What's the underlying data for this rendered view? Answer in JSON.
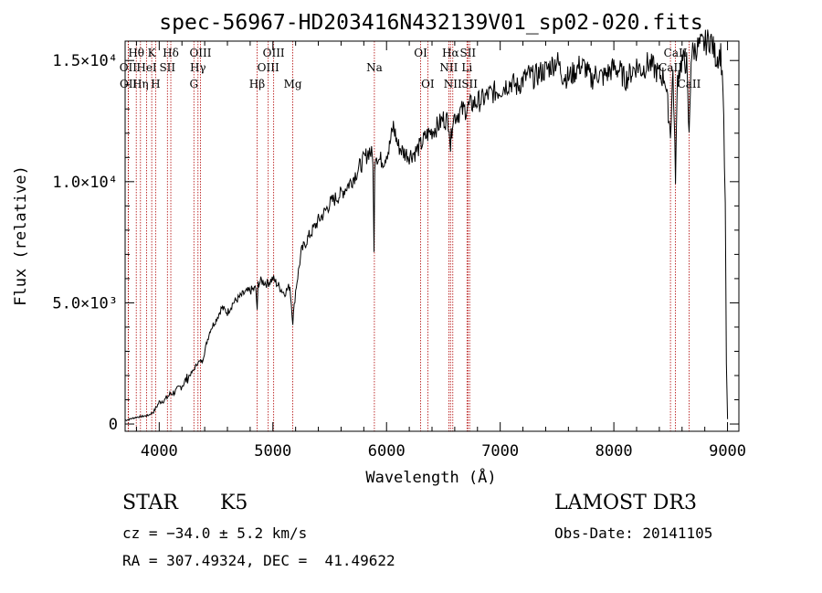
{
  "chart_data": {
    "type": "line",
    "title": "spec-56967-HD203416N432139V01_sp02-020.fits",
    "xlabel": "Wavelength (Å)",
    "ylabel": "Flux (relative)",
    "xlim": [
      3700,
      9100
    ],
    "ylim": [
      -300,
      15800
    ],
    "xticks": [
      {
        "value": 4000,
        "label": "4000"
      },
      {
        "value": 5000,
        "label": "5000"
      },
      {
        "value": 6000,
        "label": "6000"
      },
      {
        "value": 7000,
        "label": "7000"
      },
      {
        "value": 8000,
        "label": "8000"
      },
      {
        "value": 9000,
        "label": "9000"
      }
    ],
    "yticks": [
      {
        "value": 0,
        "label": "0"
      },
      {
        "value": 5000,
        "label": "5.0×10³"
      },
      {
        "value": 10000,
        "label": "1.0×10⁴"
      },
      {
        "value": 15000,
        "label": "1.5×10⁴"
      }
    ],
    "spectrum": {
      "wavelength": [
        3700,
        3800,
        3900,
        3950,
        4000,
        4050,
        4100,
        4150,
        4200,
        4250,
        4300,
        4340,
        4380,
        4420,
        4450,
        4500,
        4550,
        4600,
        4650,
        4700,
        4750,
        4800,
        4850,
        4862,
        4870,
        4900,
        4950,
        5000,
        5050,
        5100,
        5150,
        5175,
        5200,
        5250,
        5300,
        5350,
        5400,
        5450,
        5500,
        5550,
        5600,
        5650,
        5700,
        5750,
        5800,
        5850,
        5880,
        5890,
        5896,
        5905,
        5930,
        5980,
        6000,
        6020,
        6060,
        6100,
        6150,
        6200,
        6250,
        6300,
        6350,
        6400,
        6450,
        6500,
        6550,
        6563,
        6580,
        6600,
        6650,
        6700,
        6750,
        6800,
        6850,
        6900,
        6950,
        7000,
        7050,
        7100,
        7150,
        7200,
        7250,
        7300,
        7350,
        7400,
        7450,
        7500,
        7550,
        7600,
        7650,
        7700,
        7750,
        7800,
        7850,
        7900,
        7950,
        8000,
        8050,
        8100,
        8150,
        8200,
        8250,
        8300,
        8350,
        8400,
        8450,
        8498,
        8520,
        8542,
        8560,
        8600,
        8640,
        8662,
        8680,
        8700,
        8750,
        8800,
        8850,
        8900,
        8940,
        8960,
        8980,
        8990,
        9000
      ],
      "flux": [
        150,
        280,
        350,
        500,
        900,
        1000,
        1250,
        1350,
        1600,
        1900,
        2200,
        2550,
        2600,
        3400,
        3900,
        4300,
        4800,
        4600,
        5000,
        5200,
        5400,
        5500,
        5600,
        4600,
        5800,
        5900,
        5800,
        6000,
        5700,
        5400,
        5700,
        4200,
        5500,
        7100,
        7600,
        8000,
        8400,
        8700,
        9100,
        9300,
        9500,
        9800,
        10100,
        10500,
        10900,
        11300,
        11000,
        7000,
        10800,
        11200,
        10900,
        10900,
        11200,
        11300,
        12300,
        11500,
        11200,
        11100,
        11200,
        11500,
        11900,
        12100,
        12300,
        12600,
        12500,
        11400,
        12600,
        12700,
        12900,
        13000,
        13200,
        13300,
        13400,
        13600,
        13700,
        13800,
        14000,
        14100,
        13900,
        14200,
        14400,
        14300,
        14500,
        14600,
        14800,
        15000,
        14400,
        14300,
        14500,
        14800,
        14700,
        14200,
        14500,
        14300,
        14500,
        14700,
        14600,
        14200,
        14500,
        14800,
        14600,
        14900,
        14700,
        14400,
        14300,
        12000,
        14600,
        10200,
        14300,
        15000,
        14900,
        11800,
        15200,
        15400,
        15600,
        15700,
        15900,
        15100,
        15300,
        14000,
        9000,
        2500,
        200
      ]
    },
    "lines": [
      {
        "name": "Hθ",
        "wl": 3798,
        "row": 1,
        "color": "#b00000"
      },
      {
        "name": "OII",
        "wl": 3727,
        "row": 2,
        "color": "#b00000"
      },
      {
        "name": "OII",
        "wl": 3729,
        "row": 3,
        "color": "#b00000"
      },
      {
        "name": "Hη",
        "wl": 3835,
        "row": 3,
        "color": "#b00000"
      },
      {
        "name": "HeI",
        "wl": 3889,
        "row": 2,
        "color": "#b00000"
      },
      {
        "name": "K",
        "wl": 3934,
        "row": 1,
        "color": "#b00000"
      },
      {
        "name": "H",
        "wl": 3968,
        "row": 3,
        "color": "#b00000"
      },
      {
        "name": "SII",
        "wl": 4072,
        "row": 2,
        "color": "#b00000"
      },
      {
        "name": "Hδ",
        "wl": 4102,
        "row": 1,
        "color": "#b00000"
      },
      {
        "name": "G",
        "wl": 4305,
        "row": 3,
        "color": "#b00000"
      },
      {
        "name": "Hγ",
        "wl": 4341,
        "row": 2,
        "color": "#b00000"
      },
      {
        "name": "OIII",
        "wl": 4363,
        "row": 1,
        "color": "#b00000"
      },
      {
        "name": "Hβ",
        "wl": 4861,
        "row": 3,
        "color": "#b00000"
      },
      {
        "name": "OIII",
        "wl": 4959,
        "row": 2,
        "color": "#b00000"
      },
      {
        "name": "OIII",
        "wl": 5007,
        "row": 1,
        "color": "#b00000"
      },
      {
        "name": "Mg",
        "wl": 5175,
        "row": 3,
        "color": "#b00000"
      },
      {
        "name": "Na",
        "wl": 5893,
        "row": 2,
        "color": "#b00000"
      },
      {
        "name": "OI",
        "wl": 6300,
        "row": 1,
        "color": "#b00000"
      },
      {
        "name": "OI",
        "wl": 6363,
        "row": 3,
        "color": "#b00000"
      },
      {
        "name": "NII",
        "wl": 6548,
        "row": 2,
        "color": "#b00000"
      },
      {
        "name": "Hα",
        "wl": 6563,
        "row": 1,
        "color": "#b00000"
      },
      {
        "name": "NII",
        "wl": 6583,
        "row": 3,
        "color": "#b00000"
      },
      {
        "name": "SII",
        "wl": 6716,
        "row": 1,
        "color": "#b00000"
      },
      {
        "name": "Li",
        "wl": 6708,
        "row": 2,
        "color": "#b00000"
      },
      {
        "name": "SII",
        "wl": 6731,
        "row": 3,
        "color": "#b00000"
      },
      {
        "name": "CaII",
        "wl": 8498,
        "row": 2,
        "color": "#b00000"
      },
      {
        "name": "CaII",
        "wl": 8542,
        "row": 1,
        "color": "#b00000"
      },
      {
        "name": "CaII",
        "wl": 8662,
        "row": 3,
        "color": "#b00000"
      }
    ]
  },
  "info": {
    "class": "STAR",
    "subclass": "K5",
    "survey": "LAMOST DR3",
    "cz": "cz = −34.0 ± 5.2 km/s",
    "obs_date": "Obs-Date: 20141105",
    "coords": "RA = 307.49324, DEC =  41.49622"
  }
}
